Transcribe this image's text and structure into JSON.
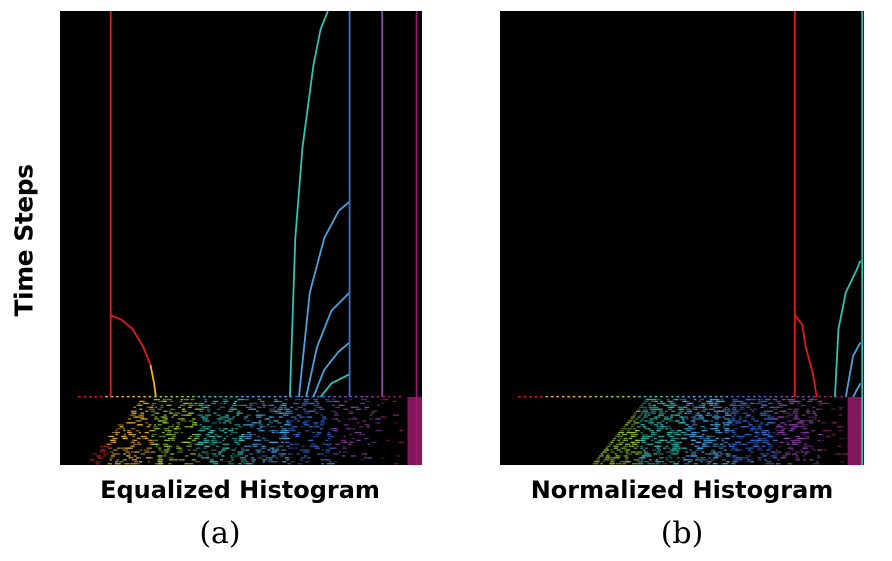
{
  "ylabel": "Time Steps",
  "chart_data": [
    {
      "type": "line",
      "panel_tag": "(a)",
      "title": "",
      "xlabel": "Equalized Histogram",
      "ylabel": "Time Steps",
      "background": "#000000",
      "colormap": [
        "#e31a1c",
        "#f0b429",
        "#9acd32",
        "#2ec4b6",
        "#4aa3df",
        "#3a6fd8",
        "#8e44ad",
        "#9b1b6b"
      ],
      "transition_fraction": 0.85,
      "series": [
        {
          "color": "#e31a1c",
          "points": [
            [
              0.14,
              0.0
            ],
            [
              0.14,
              0.85
            ]
          ]
        },
        {
          "color": "#e31a1c",
          "points": [
            [
              0.14,
              0.67
            ],
            [
              0.17,
              0.68
            ],
            [
              0.2,
              0.7
            ],
            [
              0.23,
              0.74
            ],
            [
              0.25,
              0.78
            ]
          ]
        },
        {
          "color": "#f0b429",
          "points": [
            [
              0.25,
              0.78
            ],
            [
              0.26,
              0.82
            ],
            [
              0.265,
              0.85
            ]
          ]
        },
        {
          "color": "#2ec4b6",
          "points": [
            [
              0.635,
              0.85
            ],
            [
              0.65,
              0.5
            ],
            [
              0.67,
              0.3
            ],
            [
              0.7,
              0.12
            ],
            [
              0.72,
              0.04
            ],
            [
              0.74,
              0.0
            ]
          ]
        },
        {
          "color": "#4aa3df",
          "points": [
            [
              0.66,
              0.85
            ],
            [
              0.69,
              0.62
            ],
            [
              0.73,
              0.5
            ],
            [
              0.77,
              0.44
            ],
            [
              0.8,
              0.42
            ]
          ]
        },
        {
          "color": "#4aa3df",
          "points": [
            [
              0.68,
              0.85
            ],
            [
              0.71,
              0.74
            ],
            [
              0.75,
              0.66
            ],
            [
              0.8,
              0.62
            ]
          ]
        },
        {
          "color": "#4aa3df",
          "points": [
            [
              0.7,
              0.85
            ],
            [
              0.73,
              0.79
            ],
            [
              0.77,
              0.75
            ],
            [
              0.8,
              0.73
            ]
          ]
        },
        {
          "color": "#2ec4b6",
          "points": [
            [
              0.72,
              0.85
            ],
            [
              0.75,
              0.82
            ],
            [
              0.8,
              0.8
            ]
          ]
        },
        {
          "color": "#3a6fd8",
          "points": [
            [
              0.8,
              0.0
            ],
            [
              0.8,
              0.85
            ]
          ]
        },
        {
          "color": "#8e44ad",
          "points": [
            [
              0.89,
              0.0
            ],
            [
              0.89,
              0.85
            ]
          ]
        },
        {
          "color": "#9b1b6b",
          "points": [
            [
              0.985,
              0.0
            ],
            [
              0.985,
              1.0
            ]
          ]
        }
      ]
    },
    {
      "type": "line",
      "panel_tag": "(b)",
      "title": "",
      "xlabel": "Normalized Histogram",
      "ylabel": "",
      "background": "#000000",
      "colormap": [
        "#e31a1c",
        "#f0b429",
        "#9acd32",
        "#2ec4b6",
        "#4aa3df",
        "#3a6fd8",
        "#8e44ad",
        "#9b1b6b"
      ],
      "transition_fraction": 0.85,
      "series": [
        {
          "color": "#e31a1c",
          "points": [
            [
              0.81,
              0.0
            ],
            [
              0.81,
              0.85
            ]
          ]
        },
        {
          "color": "#e31a1c",
          "points": [
            [
              0.81,
              0.67
            ],
            [
              0.83,
              0.69
            ],
            [
              0.84,
              0.74
            ],
            [
              0.86,
              0.8
            ],
            [
              0.87,
              0.85
            ]
          ]
        },
        {
          "color": "#2ec4b6",
          "points": [
            [
              0.92,
              0.85
            ],
            [
              0.93,
              0.7
            ],
            [
              0.95,
              0.62
            ],
            [
              0.98,
              0.57
            ],
            [
              0.99,
              0.55
            ]
          ]
        },
        {
          "color": "#4aa3df",
          "points": [
            [
              0.95,
              0.85
            ],
            [
              0.97,
              0.76
            ],
            [
              0.99,
              0.73
            ]
          ]
        },
        {
          "color": "#4aa3df",
          "points": [
            [
              0.97,
              0.85
            ],
            [
              0.99,
              0.82
            ]
          ]
        },
        {
          "color": "#2ec4b6",
          "points": [
            [
              0.995,
              0.0
            ],
            [
              0.995,
              1.0
            ]
          ]
        }
      ]
    }
  ]
}
